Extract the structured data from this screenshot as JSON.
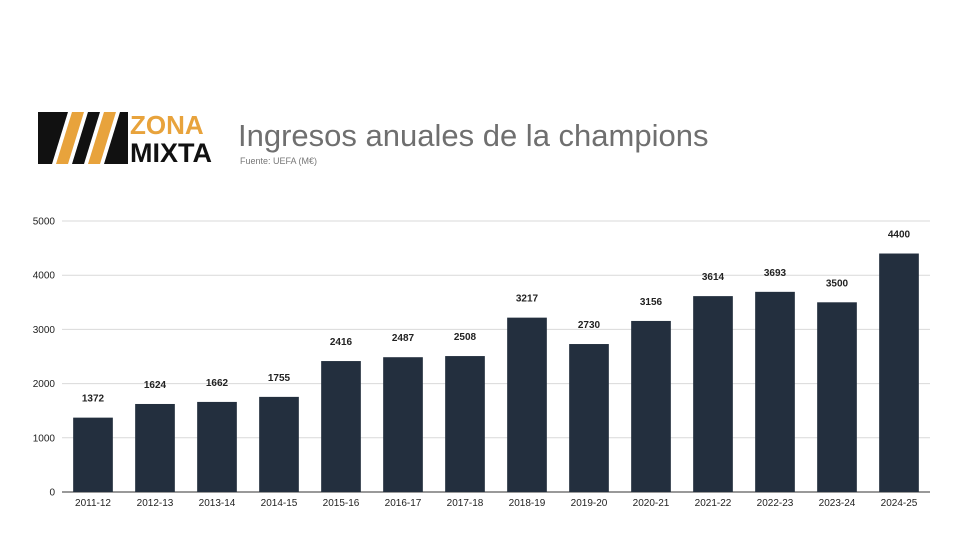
{
  "header": {
    "title": "Ingresos anuales de la champions",
    "subtitle": "Fuente: UEFA (M€)",
    "logo_word_top": "ZONA",
    "logo_word_bottom": "MIXTA"
  },
  "colors": {
    "bar": "#232f3e",
    "grid": "#d9d9d9",
    "logo_accent": "#e8a33c",
    "logo_dark": "#111111"
  },
  "chart_data": {
    "type": "bar",
    "title": "Ingresos anuales de la champions",
    "subtitle": "Fuente: UEFA (M€)",
    "xlabel": "",
    "ylabel": "",
    "categories": [
      "2011-12",
      "2012-13",
      "2013-14",
      "2014-15",
      "2015-16",
      "2016-17",
      "2017-18",
      "2018-19",
      "2019-20",
      "2020-21",
      "2021-22",
      "2022-23",
      "2023-24",
      "2024-25"
    ],
    "values": [
      1372,
      1624,
      1662,
      1755,
      2416,
      2487,
      2508,
      3217,
      2730,
      3156,
      3614,
      3693,
      3500,
      4400
    ],
    "ylim": [
      0,
      5000
    ],
    "yticks": [
      0,
      1000,
      2000,
      3000,
      4000,
      5000
    ],
    "grid": true,
    "legend": "none"
  }
}
